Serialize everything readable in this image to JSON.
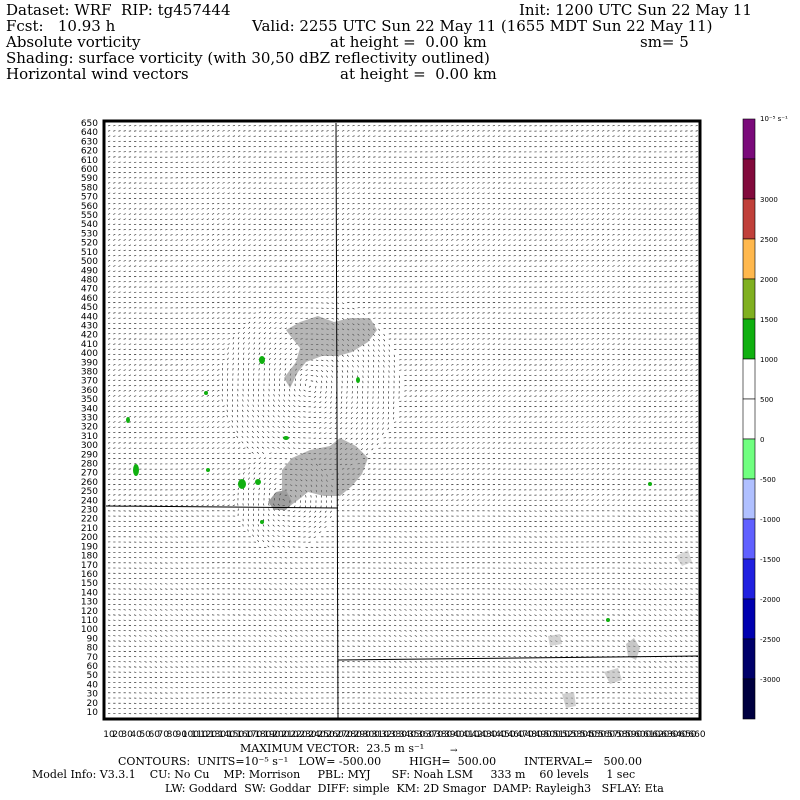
{
  "header": {
    "dataset": "Dataset: WRF  RIP: tg457444",
    "init": "Init: 1200 UTC Sun 22 May 11",
    "fcst": "Fcst:   10.93 h",
    "valid": "Valid: 2255 UTC Sun 22 May 11 (1655 MDT Sun 22 May 11)",
    "field1": "Absolute vorticity",
    "field1_level": "at height =  0.00 km",
    "smoothing": "sm= 5",
    "shading": "Shading: surface vorticity (with 30,50 dBZ reflectivity outlined)",
    "field2": "Horizontal wind vectors",
    "field2_level": "at height =  0.00 km"
  },
  "colorbar": {
    "unit": "10⁻⁵ s⁻¹",
    "labels": [
      "3000",
      "2500",
      "2000",
      "1500",
      "1000",
      "500",
      "0",
      "-500",
      "-1000",
      "-1500",
      "-2000",
      "-2500",
      "-3000"
    ],
    "colors": [
      "#7a0a7a",
      "#820a3c",
      "#c0403a",
      "#ffb84d",
      "#80b020",
      "#10b010",
      "#ffffff",
      "#ffffff",
      "#70ff80",
      "#b0c0ff",
      "#6060ff",
      "#2020e0",
      "#0000b0",
      "#00006a",
      "#000040"
    ]
  },
  "axes": {
    "y_ticks": [
      "650",
      "640",
      "630",
      "620",
      "610",
      "600",
      "590",
      "580",
      "570",
      "560",
      "550",
      "540",
      "530",
      "520",
      "510",
      "500",
      "490",
      "480",
      "470",
      "460",
      "450",
      "440",
      "430",
      "420",
      "410",
      "400",
      "390",
      "380",
      "370",
      "360",
      "350",
      "340",
      "330",
      "320",
      "310",
      "300",
      "290",
      "280",
      "270",
      "260",
      "250",
      "240",
      "230",
      "220",
      "210",
      "200",
      "190",
      "180",
      "170",
      "160",
      "150",
      "140",
      "130",
      "120",
      "110",
      "100",
      "90",
      "80",
      "70",
      "60",
      "50",
      "40",
      "30",
      "20",
      "10"
    ],
    "x_ticks": [
      "10",
      "20",
      "30",
      "40",
      "50",
      "60",
      "70",
      "80",
      "90",
      "100",
      "110",
      "120",
      "130",
      "140",
      "150",
      "160",
      "170",
      "180",
      "190",
      "200",
      "210",
      "220",
      "230",
      "240",
      "250",
      "260",
      "270",
      "280",
      "290",
      "300",
      "310",
      "320",
      "330",
      "340",
      "350",
      "360",
      "370",
      "380",
      "390",
      "400",
      "410",
      "420",
      "430",
      "440",
      "450",
      "460",
      "470",
      "480",
      "490",
      "500",
      "510",
      "520",
      "530",
      "540",
      "550",
      "560",
      "570",
      "580",
      "590",
      "600",
      "610",
      "620",
      "630",
      "640",
      "650",
      "660"
    ]
  },
  "footer": {
    "max_vector": "MAXIMUM VECTOR:  23.5 m s⁻¹",
    "contours": "CONTOURS:  UNITS=10⁻⁵ s⁻¹   LOW= -500.00        HIGH=  500.00        INTERVAL=   500.00",
    "model": "Model Info: V3.3.1    CU: No Cu    MP: Morrison     PBL: MYJ      SF: Noah LSM     333 m    60 levels     1 sec",
    "model2": "LW: Goddard  SW: Goddar  DIFF: simple  KM: 2D Smagor  DAMP: Rayleigh3   SFLAY: Eta"
  }
}
